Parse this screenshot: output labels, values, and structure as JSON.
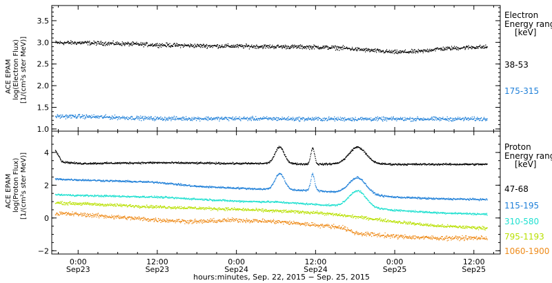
{
  "chart_data": [
    {
      "type": "scatter",
      "panel": "electron",
      "ylabel": [
        "ACE EPAM",
        "log(Electron Flux)",
        "[1/(cm²s ster MeV)]"
      ],
      "ylim": [
        0.95,
        3.85
      ],
      "y_ticks": [
        1.0,
        1.5,
        2.0,
        2.5,
        3.0,
        3.5
      ],
      "y_tick_labels": [
        "1.0",
        "1.5",
        "2.0",
        "2.5",
        "3.0",
        "3.5"
      ],
      "legend_title": [
        "Electron",
        "Energy range",
        "[keV]"
      ],
      "series": [
        {
          "name": "38-53",
          "color": "#000000",
          "anchors_h": [
            0,
            6,
            12,
            18,
            24,
            30,
            36,
            40,
            42,
            48,
            52,
            54,
            60,
            62
          ],
          "anchors_y": [
            3.0,
            2.98,
            2.95,
            2.93,
            2.92,
            2.91,
            2.9,
            2.88,
            2.85,
            2.78,
            2.8,
            2.85,
            2.9,
            2.9
          ],
          "scatter": 0.05
        },
        {
          "name": "175-315",
          "color": "#1e7fd8",
          "anchors_h": [
            0,
            12,
            24,
            36,
            48,
            62
          ],
          "anchors_y": [
            1.3,
            1.25,
            1.25,
            1.24,
            1.24,
            1.24
          ],
          "scatter": 0.05
        }
      ]
    },
    {
      "type": "scatter",
      "panel": "proton",
      "ylabel": [
        "ACE EPAM",
        "log(Proton Flux)",
        "[1/(cm²s ster MeV)]"
      ],
      "ylim": [
        -2.2,
        5.3
      ],
      "y_ticks": [
        -2,
        0,
        2,
        4
      ],
      "y_tick_labels": [
        "−2",
        "0",
        "2",
        "4"
      ],
      "legend_title": [
        "Proton",
        "Energy range",
        "[keV]"
      ],
      "spikes": [
        {
          "h": 30.5,
          "w": 1.0,
          "series": [
            "47-68",
            "115-195"
          ],
          "amp": 1.0
        },
        {
          "h": 35.5,
          "w": 0.4,
          "series": [
            "47-68",
            "115-195"
          ],
          "amp": 1.0
        },
        {
          "h": 42.3,
          "w": 1.8,
          "series": [
            "47-68",
            "115-195",
            "310-580"
          ],
          "amp": 1.0
        }
      ],
      "series": [
        {
          "name": "47-68",
          "color": "#000000",
          "anchors_h": [
            -3.5,
            -2.5,
            0,
            12,
            24,
            30,
            36,
            42,
            48,
            62
          ],
          "anchors_y": [
            4.2,
            3.45,
            3.35,
            3.4,
            3.35,
            3.35,
            3.3,
            3.35,
            3.3,
            3.3
          ],
          "scatter": 0.06
        },
        {
          "name": "115-195",
          "color": "#1e7fd8",
          "anchors_h": [
            -3.5,
            0,
            12,
            18,
            24,
            30,
            36,
            42,
            48,
            54,
            62
          ],
          "anchors_y": [
            2.4,
            2.35,
            2.2,
            1.95,
            1.85,
            1.75,
            1.7,
            1.5,
            1.3,
            1.2,
            1.15
          ],
          "scatter": 0.06
        },
        {
          "name": "310-580",
          "color": "#20e0d0",
          "anchors_h": [
            -3.5,
            0,
            12,
            24,
            30,
            36,
            42,
            48,
            54,
            62
          ],
          "anchors_y": [
            1.45,
            1.4,
            1.3,
            1.05,
            1.0,
            0.85,
            0.7,
            0.5,
            0.35,
            0.25
          ],
          "scatter": 0.06
        },
        {
          "name": "795-1193",
          "color": "#b8e000",
          "anchors_h": [
            -3.5,
            0,
            12,
            24,
            30,
            36,
            42,
            48,
            54,
            62
          ],
          "anchors_y": [
            0.95,
            0.9,
            0.7,
            0.55,
            0.45,
            0.35,
            0.1,
            -0.2,
            -0.45,
            -0.6
          ],
          "scatter": 0.1
        },
        {
          "name": "1060-1900",
          "color": "#ee8a18",
          "anchors_h": [
            -3.5,
            0,
            12,
            18,
            24,
            30,
            36,
            40,
            42,
            48,
            54,
            62
          ],
          "anchors_y": [
            0.3,
            0.25,
            -0.1,
            -0.2,
            -0.1,
            -0.2,
            -0.4,
            -0.55,
            -0.9,
            -1.1,
            -1.2,
            -1.2
          ],
          "scatter": 0.14
        }
      ]
    }
  ],
  "x_axis": {
    "label": "hours:minutes, Sep. 22, 2015 − Sep. 25, 2015",
    "range_h": [
      -4,
      64
    ],
    "ticks": [
      {
        "h": 0,
        "time": "0:00",
        "date": "Sep23"
      },
      {
        "h": 12,
        "time": "12:00",
        "date": "Sep23"
      },
      {
        "h": 24,
        "time": "0:00",
        "date": "Sep24"
      },
      {
        "h": 36,
        "time": "12:00",
        "date": "Sep24"
      },
      {
        "h": 48,
        "time": "0:00",
        "date": "Sep25"
      },
      {
        "h": 60,
        "time": "12:00",
        "date": "Sep25"
      }
    ],
    "data_span_h": [
      -3.5,
      62
    ]
  }
}
